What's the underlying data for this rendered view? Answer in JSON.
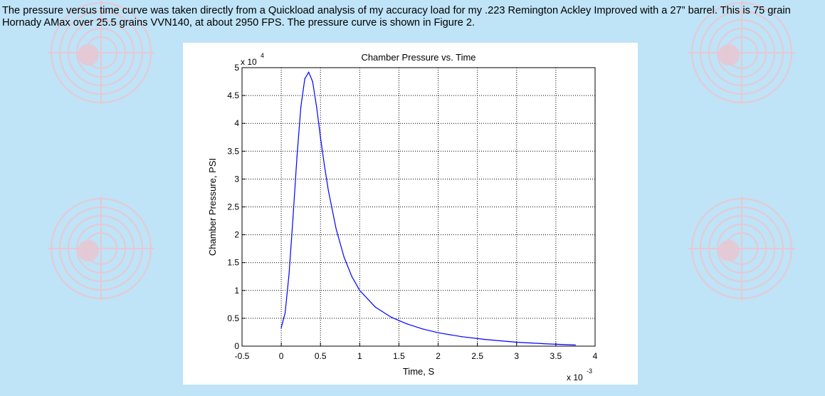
{
  "intro_text": "The pressure versus time curve was taken directly from a Quickload analysis of my accuracy load for my .223 Remington Ackley Improved with a 27” barrel. This is 75 grain Hornady AMax over 25.5 grains VVN140, at about 2950 FPS. The pressure curve is shown in Figure 2.",
  "background": {
    "page_color": "#bfe3f7",
    "target_color": "#e6c8d3"
  },
  "chart_data": {
    "type": "line",
    "title": "Chamber Pressure vs. Time",
    "xlabel": "Time, S",
    "ylabel": "Chamber Pressure, PSI",
    "x_exponent_label": "x 10",
    "x_exponent": "-3",
    "y_exponent_label": "x 10",
    "y_exponent": "4",
    "xlim": [
      -0.5,
      4
    ],
    "ylim": [
      0,
      5
    ],
    "x_ticks": [
      "-0.5",
      "0",
      "0.5",
      "1",
      "1.5",
      "2",
      "2.5",
      "3",
      "3.5",
      "4"
    ],
    "y_ticks": [
      "0",
      "0.5",
      "1",
      "1.5",
      "2",
      "2.5",
      "3",
      "3.5",
      "4",
      "4.5",
      "5"
    ],
    "grid": "dotted",
    "line_color": "#0000ff",
    "series": [
      {
        "x": [
          0.0,
          0.05,
          0.1,
          0.15,
          0.2,
          0.25,
          0.3,
          0.35,
          0.4,
          0.45,
          0.5,
          0.55,
          0.6,
          0.7,
          0.8,
          0.9,
          1.0,
          1.2,
          1.4,
          1.6,
          1.8,
          2.0,
          2.3,
          2.6,
          3.0,
          3.4,
          3.75
        ],
        "y": [
          0.33,
          0.6,
          1.3,
          2.3,
          3.4,
          4.3,
          4.8,
          4.92,
          4.75,
          4.3,
          3.75,
          3.25,
          2.8,
          2.1,
          1.6,
          1.25,
          1.0,
          0.7,
          0.52,
          0.4,
          0.31,
          0.24,
          0.17,
          0.12,
          0.07,
          0.04,
          0.02
        ]
      }
    ]
  }
}
